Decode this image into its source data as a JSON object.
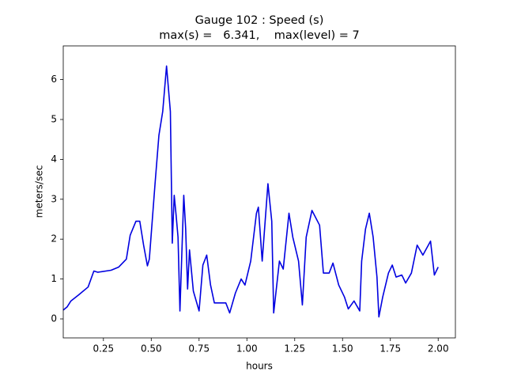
{
  "chart_data": {
    "type": "line",
    "title": "Gauge 102 : Speed (s)",
    "subtitle": "max(s) =   6.341,    max(level) = 7",
    "xlabel": "hours",
    "ylabel": "meters/sec",
    "xlim": [
      0.04,
      2.09
    ],
    "ylim": [
      -0.476,
      6.845
    ],
    "xticks": [
      0.25,
      {
        "value": 0.5,
        "label": "0.50"
      },
      0.75,
      {
        "value": 1,
        "label": "1.00"
      },
      1.25,
      {
        "value": 1.5,
        "label": "1.50"
      },
      1.75,
      {
        "value": 2,
        "label": "2.00"
      }
    ],
    "yticks": [
      0,
      1,
      2,
      3,
      4,
      5,
      6
    ],
    "grid": false,
    "series": [
      {
        "name": "s",
        "color": "#0000e0",
        "x": [
          0.04,
          0.06,
          0.08,
          0.12,
          0.17,
          0.2,
          0.22,
          0.29,
          0.33,
          0.37,
          0.39,
          0.42,
          0.44,
          0.46,
          0.48,
          0.49,
          0.52,
          0.54,
          0.56,
          0.58,
          0.6,
          0.61,
          0.62,
          0.63,
          0.64,
          0.65,
          0.67,
          0.68,
          0.69,
          0.7,
          0.72,
          0.75,
          0.77,
          0.79,
          0.81,
          0.83,
          0.89,
          0.91,
          0.94,
          0.97,
          0.99,
          1.02,
          1.05,
          1.06,
          1.08,
          1.11,
          1.13,
          1.14,
          1.17,
          1.19,
          1.22,
          1.24,
          1.27,
          1.29,
          1.31,
          1.34,
          1.38,
          1.4,
          1.43,
          1.45,
          1.48,
          1.51,
          1.53,
          1.56,
          1.59,
          1.6,
          1.62,
          1.64,
          1.66,
          1.68,
          1.69,
          1.71,
          1.74,
          1.76,
          1.78,
          1.81,
          1.83,
          1.86,
          1.89,
          1.92,
          1.96,
          1.98,
          2.0
        ],
        "values": [
          0.22,
          0.3,
          0.45,
          0.6,
          0.8,
          1.2,
          1.17,
          1.22,
          1.3,
          1.5,
          2.1,
          2.45,
          2.45,
          1.85,
          1.33,
          1.5,
          3.4,
          4.6,
          5.2,
          6.34,
          5.2,
          1.9,
          3.1,
          2.6,
          2.05,
          0.2,
          3.1,
          2.25,
          0.75,
          1.73,
          0.7,
          0.2,
          1.35,
          1.6,
          0.85,
          0.4,
          0.4,
          0.15,
          0.65,
          1.0,
          0.85,
          1.45,
          2.65,
          2.8,
          1.45,
          3.39,
          2.45,
          0.15,
          1.45,
          1.25,
          2.65,
          2.05,
          1.45,
          0.35,
          2.05,
          2.72,
          2.35,
          1.15,
          1.15,
          1.4,
          0.85,
          0.55,
          0.25,
          0.45,
          0.2,
          1.45,
          2.25,
          2.65,
          2.05,
          1.05,
          0.05,
          0.55,
          1.15,
          1.35,
          1.05,
          1.1,
          0.9,
          1.15,
          1.85,
          1.6,
          1.95,
          1.1,
          1.3
        ]
      }
    ]
  }
}
